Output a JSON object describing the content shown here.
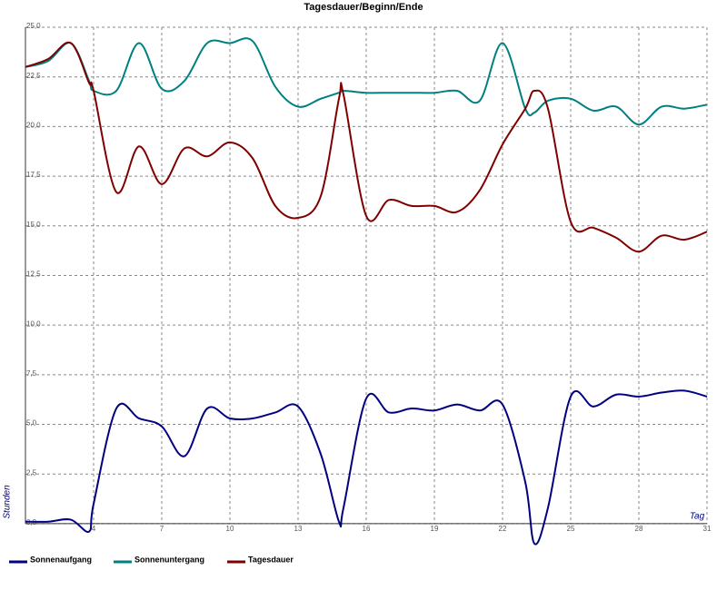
{
  "chart_data": {
    "type": "line",
    "title": "Tagesdauer/Beginn/Ende",
    "x_label": "Tag",
    "y_label": "Stunden",
    "x": [
      1,
      2,
      3,
      3.8,
      4,
      5,
      6,
      7,
      8,
      9,
      10,
      11,
      12,
      13,
      14,
      14.8,
      15,
      16,
      17,
      18,
      19,
      20,
      21,
      22,
      23,
      23.4,
      24,
      25,
      26,
      27,
      28,
      29,
      30,
      31
    ],
    "series": [
      {
        "name": "Sonnenaufgang",
        "color": "#000080",
        "values": [
          0.1,
          0.1,
          0.2,
          -0.4,
          1.0,
          5.8,
          5.3,
          4.9,
          3.4,
          5.8,
          5.3,
          5.3,
          5.6,
          5.9,
          3.5,
          0.1,
          0.8,
          6.3,
          5.6,
          5.8,
          5.7,
          6.0,
          5.7,
          6.0,
          2.1,
          -1.0,
          0.8,
          6.4,
          5.9,
          6.5,
          6.4,
          6.6,
          6.7,
          6.4
        ]
      },
      {
        "name": "Sonnenuntergang",
        "color": "#008080",
        "values": [
          23.0,
          23.3,
          24.2,
          22.3,
          21.8,
          21.8,
          24.2,
          21.9,
          22.3,
          24.2,
          24.2,
          24.3,
          22.0,
          21.0,
          21.4,
          21.7,
          21.8,
          21.7,
          21.7,
          21.7,
          21.7,
          21.8,
          21.3,
          24.2,
          20.9,
          20.7,
          21.3,
          21.4,
          20.8,
          21.0,
          20.1,
          21.0,
          20.9,
          21.1
        ]
      },
      {
        "name": "Tagesdauer",
        "color": "#800000",
        "values": [
          23.0,
          23.4,
          24.2,
          22.2,
          21.8,
          16.7,
          19.0,
          17.1,
          18.9,
          18.5,
          19.2,
          18.4,
          16.0,
          15.4,
          16.5,
          21.4,
          21.6,
          15.5,
          16.3,
          16.0,
          16.0,
          15.7,
          16.8,
          19.1,
          20.9,
          21.8,
          20.9,
          15.2,
          14.9,
          14.4,
          13.7,
          14.5,
          14.3,
          14.7
        ]
      }
    ],
    "xlim": [
      1,
      31
    ],
    "xticks": [
      4,
      7,
      10,
      13,
      16,
      19,
      22,
      25,
      28,
      31
    ],
    "ylim": [
      -1.1,
      25
    ],
    "yticks": [
      {
        "value": 0,
        "label": "0,0"
      },
      {
        "value": 2.5,
        "label": "2,5"
      },
      {
        "value": 5,
        "label": "5,0"
      },
      {
        "value": 7.5,
        "label": "7,5"
      },
      {
        "value": 10,
        "label": "10,0"
      },
      {
        "value": 12.5,
        "label": "12,5"
      },
      {
        "value": 15,
        "label": "15,0"
      },
      {
        "value": 17.5,
        "label": "17,5"
      },
      {
        "value": 20,
        "label": "20,0"
      },
      {
        "value": 22.5,
        "label": "22,5"
      },
      {
        "value": 25,
        "label": "25,0"
      }
    ],
    "grid": true,
    "legend": "bottom"
  }
}
